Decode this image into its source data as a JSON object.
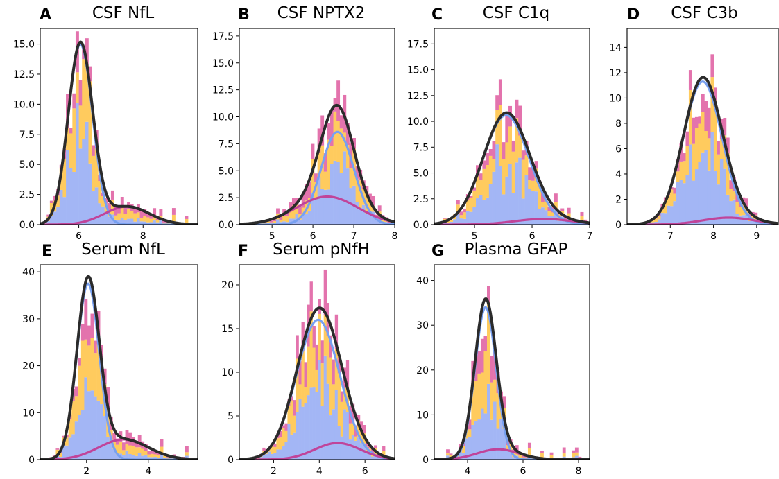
{
  "colors": {
    "bar_bottom": "#a3b6f5",
    "bar_middle": "#ffcb5e",
    "bar_top": "#e373ad",
    "curve_main": "#78a0f0",
    "curve_secondary": "#c0449a",
    "curve_total": "#2b2b2b"
  },
  "chart_data": [
    {
      "letter": "A",
      "title": "CSF NfL",
      "type": "bar",
      "xlim": [
        4.8,
        9.7
      ],
      "ylim": [
        0,
        16.3
      ],
      "xticks": [
        6,
        8
      ],
      "yticks": [
        0.0,
        2.5,
        5.0,
        7.5,
        10.0,
        12.5,
        15.0
      ],
      "yticklabels": [
        "0.0",
        "2.5",
        "5.0",
        "7.5",
        "10.0",
        "12.5",
        "15.0"
      ],
      "hist": {
        "xmin": 5.0,
        "xmax": 9.5,
        "bins": 45,
        "seed": 11
      },
      "components": [
        {
          "mu": 6.05,
          "sigma": 0.38,
          "peak": 15.0
        },
        {
          "mu": 7.5,
          "sigma": 0.7,
          "peak": 1.5
        }
      ]
    },
    {
      "letter": "B",
      "title": "CSF NPTX2",
      "type": "bar",
      "xlim": [
        4.2,
        8.0
      ],
      "ylim": [
        0,
        18.2
      ],
      "xticks": [
        5,
        6,
        7,
        8
      ],
      "yticks": [
        0.0,
        2.5,
        5.0,
        7.5,
        10.0,
        12.5,
        15.0,
        17.5
      ],
      "yticklabels": [
        "0.0",
        "2.5",
        "5.0",
        "7.5",
        "10.0",
        "12.5",
        "15.0",
        "17.5"
      ],
      "hist": {
        "xmin": 4.4,
        "xmax": 7.9,
        "bins": 45,
        "seed": 23
      },
      "components": [
        {
          "mu": 6.6,
          "sigma": 0.4,
          "peak": 8.6
        },
        {
          "mu": 6.35,
          "sigma": 0.75,
          "peak": 2.6
        }
      ]
    },
    {
      "letter": "C",
      "title": "CSF C1q",
      "type": "bar",
      "xlim": [
        4.3,
        7.0
      ],
      "ylim": [
        0,
        19.0
      ],
      "xticks": [
        5,
        6,
        7
      ],
      "yticks": [
        0.0,
        2.5,
        5.0,
        7.5,
        10.0,
        12.5,
        15.0,
        17.5
      ],
      "yticklabels": [
        "0.0",
        "2.5",
        "5.0",
        "7.5",
        "10.0",
        "12.5",
        "15.0",
        "17.5"
      ],
      "hist": {
        "xmin": 4.4,
        "xmax": 6.95,
        "bins": 45,
        "seed": 37
      },
      "components": [
        {
          "mu": 5.55,
          "sigma": 0.4,
          "peak": 10.6
        },
        {
          "mu": 6.2,
          "sigma": 0.5,
          "peak": 0.55
        }
      ]
    },
    {
      "letter": "D",
      "title": "CSF C3b",
      "type": "bar",
      "xlim": [
        6.0,
        9.5
      ],
      "ylim": [
        0,
        15.5
      ],
      "xticks": [
        7,
        8,
        9
      ],
      "yticks": [
        0,
        2,
        4,
        6,
        8,
        10,
        12,
        14
      ],
      "yticklabels": [
        "0",
        "2",
        "4",
        "6",
        "8",
        "10",
        "12",
        "14"
      ],
      "hist": {
        "xmin": 6.2,
        "xmax": 9.45,
        "bins": 45,
        "seed": 41
      },
      "components": [
        {
          "mu": 7.75,
          "sigma": 0.45,
          "peak": 11.3
        },
        {
          "mu": 8.35,
          "sigma": 0.6,
          "peak": 0.55
        }
      ]
    },
    {
      "letter": "E",
      "title": "Serum NfL",
      "type": "bar",
      "xlim": [
        0.5,
        5.6
      ],
      "ylim": [
        0,
        41.5
      ],
      "xticks": [
        2,
        4
      ],
      "yticks": [
        0,
        10,
        20,
        30,
        40
      ],
      "yticklabels": [
        "0",
        "10",
        "20",
        "30",
        "40"
      ],
      "hist": {
        "xmin": 0.8,
        "xmax": 5.4,
        "bins": 45,
        "seed": 53
      },
      "components": [
        {
          "mu": 2.05,
          "sigma": 0.36,
          "peak": 37.5
        },
        {
          "mu": 3.2,
          "sigma": 0.8,
          "peak": 4.3
        }
      ]
    },
    {
      "letter": "F",
      "title": "Serum pNfH",
      "type": "bar",
      "xlim": [
        0.5,
        7.3
      ],
      "ylim": [
        0,
        22.3
      ],
      "xticks": [
        2,
        4,
        6
      ],
      "yticks": [
        0,
        5,
        10,
        15,
        20
      ],
      "yticklabels": [
        "0",
        "5",
        "10",
        "15",
        "20"
      ],
      "hist": {
        "xmin": 0.9,
        "xmax": 7.0,
        "bins": 50,
        "seed": 67
      },
      "components": [
        {
          "mu": 3.95,
          "sigma": 0.95,
          "peak": 16.0
        },
        {
          "mu": 4.8,
          "sigma": 1.0,
          "peak": 1.9
        }
      ]
    },
    {
      "letter": "G",
      "title": "Plasma GFAP",
      "type": "bar",
      "xlim": [
        2.8,
        8.4
      ],
      "ylim": [
        0,
        43.5
      ],
      "xticks": [
        4,
        6,
        8
      ],
      "yticks": [
        0,
        10,
        20,
        30,
        40
      ],
      "yticklabels": [
        "0",
        "10",
        "20",
        "30",
        "40"
      ],
      "hist": {
        "xmin": 3.0,
        "xmax": 8.1,
        "bins": 45,
        "seed": 79
      },
      "components": [
        {
          "mu": 4.65,
          "sigma": 0.38,
          "peak": 34.0
        },
        {
          "mu": 5.1,
          "sigma": 0.75,
          "peak": 2.3
        }
      ]
    }
  ]
}
